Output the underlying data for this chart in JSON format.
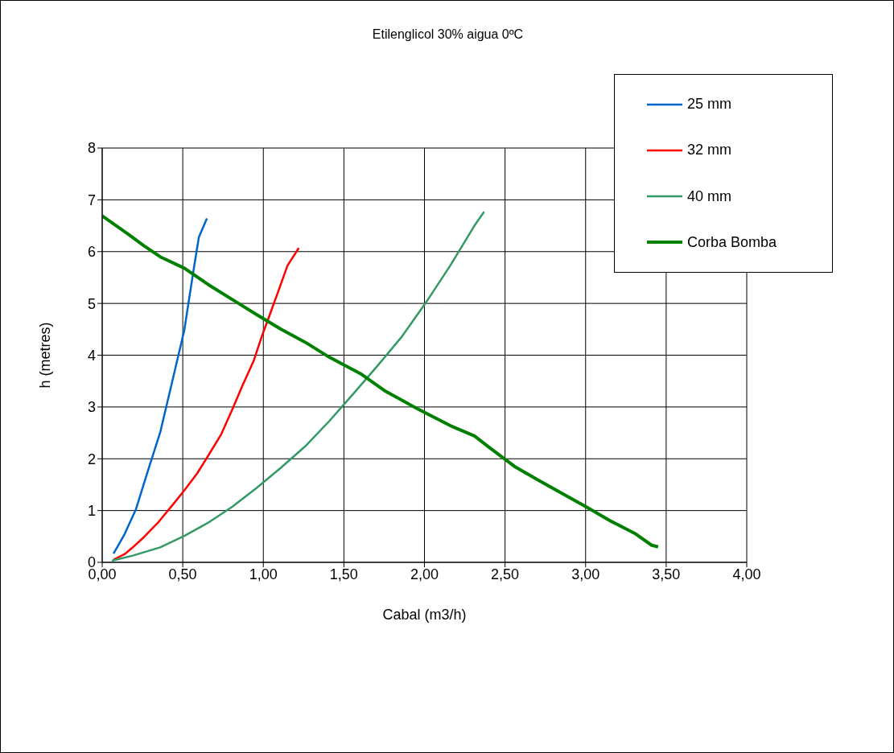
{
  "chart_data": {
    "type": "line",
    "title": "Etilenglicol 30% aigua 0ºC",
    "xlabel": "Cabal (m3/h)",
    "ylabel": "h (metres)",
    "xlim": [
      0,
      4
    ],
    "ylim": [
      0,
      8
    ],
    "xticks": [
      {
        "value": 0,
        "label": "0,00"
      },
      {
        "value": 0.5,
        "label": "0,50"
      },
      {
        "value": 1,
        "label": "1,00"
      },
      {
        "value": 1.5,
        "label": "1,50"
      },
      {
        "value": 2,
        "label": "2,00"
      },
      {
        "value": 2.5,
        "label": "2,50"
      },
      {
        "value": 3,
        "label": "3,00"
      },
      {
        "value": 3.5,
        "label": "3,50"
      },
      {
        "value": 4,
        "label": "4,00"
      }
    ],
    "yticks": [
      0,
      1,
      2,
      3,
      4,
      5,
      6,
      7,
      8
    ],
    "grid": true,
    "legend": "top right",
    "marker": "none",
    "line_style": "solid",
    "series": [
      {
        "name": "25 mm",
        "color": "#0066cc",
        "x": [
          0.07,
          0.1,
          0.14,
          0.21,
          0.28,
          0.36,
          0.43,
          0.51,
          0.54,
          0.57,
          0.6,
          0.65
        ],
        "values": [
          0.17,
          0.33,
          0.55,
          1.03,
          1.73,
          2.51,
          3.43,
          4.49,
          5.1,
          5.7,
          6.28,
          6.64
        ]
      },
      {
        "name": "32 mm",
        "color": "#ff0000",
        "x": [
          0.07,
          0.14,
          0.19,
          0.26,
          0.35,
          0.44,
          0.51,
          0.59,
          0.66,
          0.74,
          0.81,
          0.87,
          0.94,
          0.99,
          1.04,
          1.09,
          1.15,
          1.22
        ],
        "values": [
          0.05,
          0.16,
          0.29,
          0.49,
          0.78,
          1.12,
          1.39,
          1.72,
          2.07,
          2.48,
          2.97,
          3.41,
          3.89,
          4.36,
          4.78,
          5.21,
          5.73,
          6.07
        ]
      },
      {
        "name": "40 mm",
        "color": "#339966",
        "x": [
          0.06,
          0.19,
          0.36,
          0.51,
          0.66,
          0.81,
          0.96,
          1.11,
          1.26,
          1.41,
          1.56,
          1.71,
          1.86,
          2.01,
          2.16,
          2.31,
          2.37
        ],
        "values": [
          0.03,
          0.13,
          0.29,
          0.51,
          0.77,
          1.08,
          1.44,
          1.83,
          2.24,
          2.73,
          3.26,
          3.8,
          4.36,
          5.02,
          5.73,
          6.5,
          6.77
        ]
      },
      {
        "name": "Corba Bomba",
        "color": "#008000",
        "x": [
          0,
          0.16,
          0.26,
          0.36,
          0.51,
          0.66,
          0.81,
          0.96,
          1.11,
          1.26,
          1.41,
          1.61,
          1.76,
          1.96,
          2.16,
          2.31,
          2.41,
          2.56,
          2.71,
          2.86,
          3.01,
          3.16,
          3.31,
          3.41,
          3.45
        ],
        "values": [
          6.69,
          6.34,
          6.11,
          5.9,
          5.68,
          5.36,
          5.07,
          4.78,
          4.5,
          4.25,
          3.96,
          3.63,
          3.3,
          2.96,
          2.64,
          2.44,
          2.2,
          1.85,
          1.58,
          1.32,
          1.06,
          0.79,
          0.55,
          0.33,
          0.3
        ]
      }
    ]
  }
}
